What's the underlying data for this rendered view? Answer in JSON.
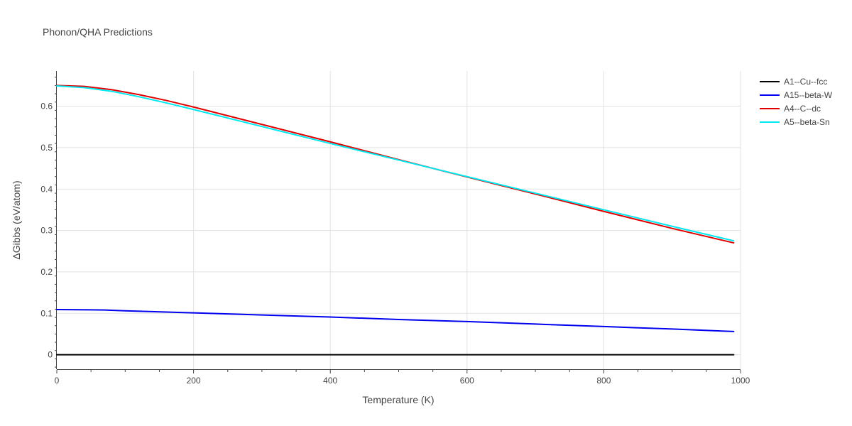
{
  "chart_data": {
    "type": "line",
    "title": "Phonon/QHA Predictions",
    "xlabel": "Temperature (K)",
    "ylabel": "ΔGibbs (eV/atom)",
    "xlim": [
      0,
      1000
    ],
    "ylim": [
      -0.035,
      0.685
    ],
    "xticks": [
      0,
      200,
      400,
      600,
      800,
      1000
    ],
    "yticks": [
      0,
      0.1,
      0.2,
      0.3,
      0.4,
      0.5,
      0.6
    ],
    "grid": true,
    "legend": "top-right",
    "series": [
      {
        "name": "A1--Cu--fcc",
        "color": "#000000",
        "x": [
          0,
          100,
          200,
          300,
          400,
          500,
          600,
          700,
          800,
          900,
          990
        ],
        "y": [
          0,
          0,
          0,
          0,
          0,
          0,
          0,
          0,
          0,
          0,
          0
        ]
      },
      {
        "name": "A15--beta-W",
        "color": "#0000ee",
        "x": [
          0,
          70,
          100,
          200,
          300,
          400,
          500,
          600,
          700,
          800,
          900,
          990
        ],
        "y": [
          0.109,
          0.108,
          0.106,
          0.101,
          0.096,
          0.091,
          0.085,
          0.08,
          0.074,
          0.068,
          0.062,
          0.056
        ]
      },
      {
        "name": "A4--C--dc",
        "color": "#e00000",
        "x": [
          0,
          40,
          80,
          120,
          160,
          200,
          300,
          400,
          500,
          600,
          700,
          800,
          900,
          990
        ],
        "y": [
          0.65,
          0.648,
          0.64,
          0.628,
          0.614,
          0.598,
          0.556,
          0.514,
          0.471,
          0.429,
          0.388,
          0.346,
          0.305,
          0.27
        ]
      },
      {
        "name": "A5--beta-Sn",
        "color": "#00e8f0",
        "x": [
          0,
          40,
          80,
          120,
          160,
          200,
          300,
          400,
          500,
          600,
          700,
          800,
          900,
          990
        ],
        "y": [
          0.649,
          0.645,
          0.636,
          0.623,
          0.608,
          0.592,
          0.551,
          0.51,
          0.47,
          0.43,
          0.39,
          0.35,
          0.31,
          0.275
        ]
      }
    ]
  }
}
